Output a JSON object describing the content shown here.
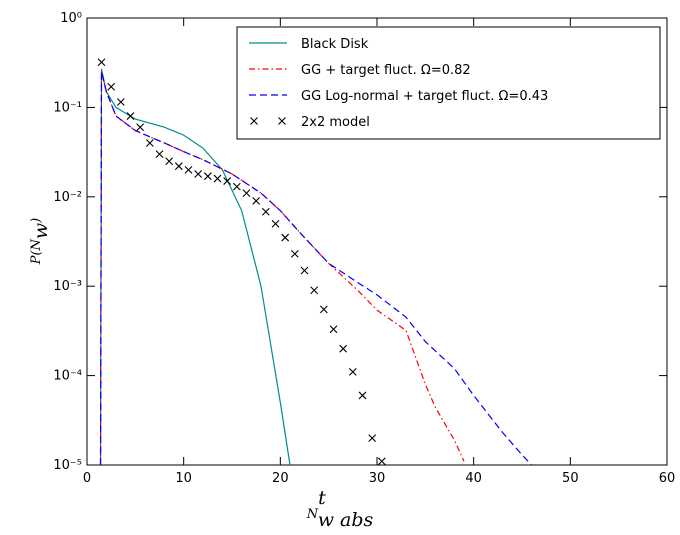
{
  "chart_data": {
    "type": "line",
    "xlabel": [
      "N",
      "w abs",
      "t"
    ],
    "ylabel": [
      "P(N",
      "w",
      ")"
    ],
    "xlim": [
      0,
      60
    ],
    "xticks": [
      0,
      10,
      20,
      30,
      40,
      50,
      60
    ],
    "ylim": [
      1e-05,
      1
    ],
    "yscale": "log",
    "yticks": [
      {
        "value": 1e-05,
        "label": "10⁻⁵"
      },
      {
        "value": 0.0001,
        "label": "10⁻⁴"
      },
      {
        "value": 0.001,
        "label": "10⁻³"
      },
      {
        "value": 0.01,
        "label": "10⁻²"
      },
      {
        "value": 0.1,
        "label": "10⁻¹"
      },
      {
        "value": 1,
        "label": "10⁰"
      }
    ],
    "legend": "upper right",
    "series": [
      {
        "name": "Black Disk",
        "color": "#008b8b",
        "style": "solid",
        "x": [
          1.4,
          1.5,
          2,
          3,
          5,
          8,
          10,
          12,
          14,
          16,
          18,
          20,
          21
        ],
        "values": [
          1e-05,
          0.27,
          0.15,
          0.1,
          0.074,
          0.06,
          0.049,
          0.035,
          0.02,
          0.007,
          0.001,
          5e-05,
          1e-05
        ]
      },
      {
        "name": "GG + target fluct. Ω=0.82",
        "color": "#ff0000",
        "style": "dashdot",
        "x": [
          1.4,
          1.5,
          2,
          3,
          5,
          8,
          10,
          12,
          15,
          18,
          20,
          22,
          25,
          28,
          30,
          33,
          35,
          36,
          38,
          39
        ],
        "values": [
          1e-05,
          0.25,
          0.15,
          0.08,
          0.055,
          0.04,
          0.032,
          0.026,
          0.018,
          0.011,
          0.007,
          0.004,
          0.0018,
          0.0009,
          0.00054,
          0.00032,
          8e-05,
          4.5e-05,
          1.9e-05,
          1.1e-05
        ]
      },
      {
        "name": "GG Log-normal + target fluct. Ω=0.43",
        "color": "#0000ff",
        "style": "dashed",
        "x": [
          1.4,
          1.5,
          2,
          3,
          5,
          8,
          10,
          12,
          15,
          18,
          20,
          22,
          25,
          28,
          30,
          33,
          35,
          38,
          40,
          43,
          45,
          46
        ],
        "values": [
          1e-05,
          0.25,
          0.15,
          0.08,
          0.055,
          0.04,
          0.032,
          0.026,
          0.018,
          0.011,
          0.007,
          0.004,
          0.0018,
          0.0011,
          0.0008,
          0.00045,
          0.00024,
          0.00012,
          6e-05,
          2.3e-05,
          1.3e-05,
          1e-05
        ]
      },
      {
        "name": "2x2 model",
        "color": "#000000",
        "style": "cross",
        "x": [
          1.5,
          2.5,
          3.5,
          4.5,
          5.5,
          6.5,
          7.5,
          8.5,
          9.5,
          10.5,
          11.5,
          12.5,
          13.5,
          14.5,
          15.5,
          16.5,
          17.5,
          18.5,
          19.5,
          20.5,
          21.5,
          22.5,
          23.5,
          24.5,
          25.5,
          26.5,
          27.5,
          28.5,
          29.5,
          30.5
        ],
        "values": [
          0.32,
          0.17,
          0.115,
          0.08,
          0.06,
          0.04,
          0.03,
          0.025,
          0.022,
          0.02,
          0.018,
          0.017,
          0.016,
          0.015,
          0.013,
          0.011,
          0.009,
          0.0068,
          0.005,
          0.0035,
          0.0023,
          0.0015,
          0.0009,
          0.00055,
          0.00033,
          0.0002,
          0.00011,
          6e-05,
          2e-05,
          1.1e-05
        ]
      }
    ]
  }
}
